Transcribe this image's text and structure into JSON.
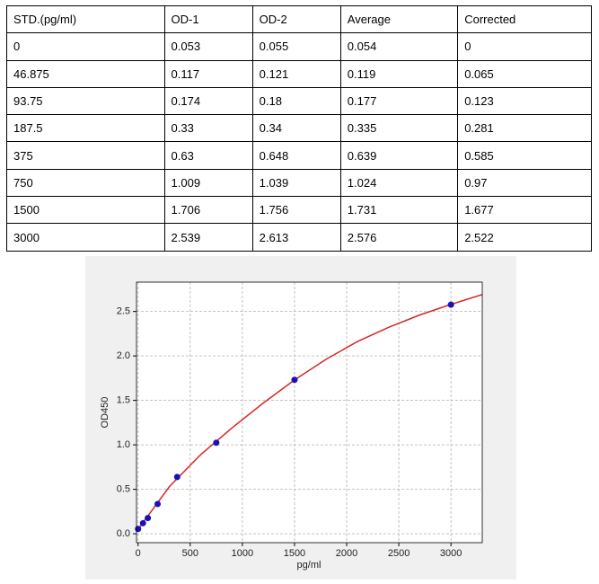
{
  "table": {
    "header": [
      "STD.(pg/ml)",
      "OD-1",
      "OD-2",
      "Average",
      "Corrected"
    ],
    "rows": [
      [
        "0",
        "0.053",
        "0.055",
        "0.054",
        "0"
      ],
      [
        "46.875",
        "0.117",
        "0.121",
        "0.119",
        "0.065"
      ],
      [
        "93.75",
        "0.174",
        "0.18",
        "0.177",
        "0.123"
      ],
      [
        "187.5",
        "0.33",
        "0.34",
        "0.335",
        "0.281"
      ],
      [
        "375",
        "0.63",
        "0.648",
        "0.639",
        "0.585"
      ],
      [
        "750",
        "1.009",
        "1.039",
        "1.024",
        "0.97"
      ],
      [
        "1500",
        "1.706",
        "1.756",
        "1.731",
        "1.677"
      ],
      [
        "3000",
        "2.539",
        "2.613",
        "2.576",
        "2.522"
      ]
    ]
  },
  "chart_data": {
    "type": "scatter",
    "xlabel": "pg/ml",
    "ylabel": "OD450",
    "xlim": [
      -15,
      3300
    ],
    "ylim": [
      -0.1,
      2.83
    ],
    "xticks": [
      0,
      500,
      1000,
      1500,
      2000,
      2500,
      3000
    ],
    "yticks": [
      {
        "value": 0,
        "label": "0.0"
      },
      0.5,
      {
        "value": 1,
        "label": "1.0"
      },
      1.5,
      {
        "value": 2,
        "label": "2.0"
      },
      2.5
    ],
    "grid": true,
    "series": [
      {
        "type": "line",
        "color": "#d62728",
        "x": [
          0,
          300,
          600,
          900,
          1200,
          1500,
          1800,
          2100,
          2400,
          2700,
          3000,
          3300
        ],
        "values": [
          0.05,
          0.53,
          0.89,
          1.19,
          1.47,
          1.73,
          1.96,
          2.16,
          2.32,
          2.46,
          2.58,
          2.69
        ]
      },
      {
        "type": "scatter",
        "color": "#1a10b8",
        "x": [
          0,
          46.875,
          93.75,
          187.5,
          375,
          750,
          1500,
          3000
        ],
        "values": [
          0.054,
          0.119,
          0.177,
          0.335,
          0.639,
          1.024,
          1.731,
          2.576
        ]
      }
    ]
  }
}
